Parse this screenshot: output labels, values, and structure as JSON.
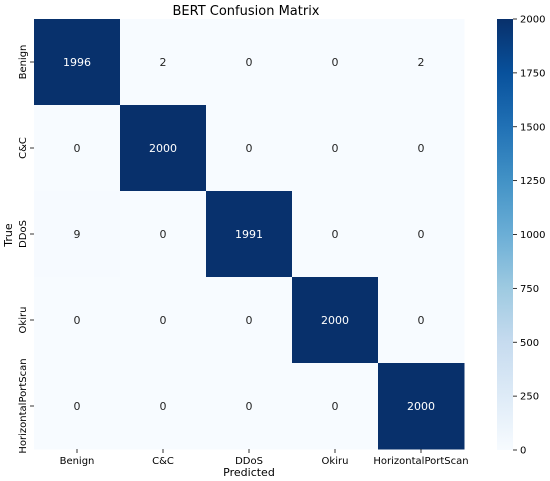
{
  "chart_data": {
    "type": "heatmap",
    "title": "BERT Confusion Matrix",
    "xlabel": "Predicted",
    "ylabel": "True",
    "x_categories": [
      "Benign",
      "C&C",
      "DDoS",
      "Okiru",
      "HorizontalPortScan"
    ],
    "y_categories": [
      "Benign",
      "C&C",
      "DDoS",
      "Okiru",
      "HorizontalPortScan"
    ],
    "values": [
      [
        1996,
        2,
        0,
        0,
        2
      ],
      [
        0,
        2000,
        0,
        0,
        0
      ],
      [
        9,
        0,
        1991,
        0,
        0
      ],
      [
        0,
        0,
        0,
        2000,
        0
      ],
      [
        0,
        0,
        0,
        0,
        2000
      ]
    ],
    "colorbar": {
      "vmin": 0,
      "vmax": 2000,
      "ticks": [
        0,
        250,
        500,
        750,
        1000,
        1250,
        1500,
        1750,
        2000
      ],
      "colormap": "Blues",
      "low_color": "#f7fbff",
      "high_color": "#08306b"
    },
    "grid": false
  }
}
